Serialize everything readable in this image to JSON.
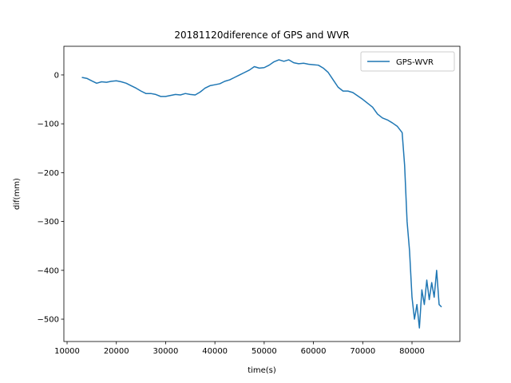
{
  "chart_data": {
    "type": "line",
    "title": "20181120diference of GPS and WVR",
    "x_label": "time(s)",
    "y_label": "dif(mm)",
    "legend_position": "upper right",
    "xlim": [
      9350,
      89720
    ],
    "ylim": [
      -545.7,
      58.7
    ],
    "xticks": [
      10000,
      20000,
      30000,
      40000,
      50000,
      60000,
      70000,
      80000
    ],
    "yticks": [
      0,
      {
        "value": -100,
        "label": "−100"
      },
      {
        "value": -200,
        "label": "−200"
      },
      {
        "value": -300,
        "label": "−300"
      },
      {
        "value": -400,
        "label": "−400"
      },
      {
        "value": -500,
        "label": "−500"
      }
    ],
    "x": [
      13000,
      14000,
      15000,
      16000,
      17000,
      18000,
      19000,
      20000,
      21000,
      22000,
      23000,
      24000,
      25000,
      26000,
      27000,
      28000,
      29000,
      30000,
      31000,
      32000,
      33000,
      34000,
      35000,
      36000,
      37000,
      38000,
      39000,
      40000,
      41000,
      42000,
      43000,
      44000,
      45000,
      46000,
      47000,
      48000,
      49000,
      50000,
      51000,
      52000,
      53000,
      54000,
      55000,
      56000,
      57000,
      58000,
      59000,
      60000,
      61000,
      62000,
      63000,
      64000,
      65000,
      66000,
      67000,
      68000,
      69000,
      70000,
      71000,
      72000,
      73000,
      74000,
      75000,
      76000,
      77000,
      78000,
      78500,
      79000,
      79500,
      80000,
      80500,
      81000,
      81500,
      82000,
      82500,
      83000,
      83500,
      84000,
      84500,
      85000,
      85500,
      86000
    ],
    "series": [
      {
        "name": "GPS-WVR",
        "color": "#1f77b4",
        "values": [
          -5,
          -7,
          -12,
          -17,
          -14,
          -15,
          -13,
          -12,
          -14,
          -17,
          -22,
          -27,
          -33,
          -38,
          -38,
          -40,
          -44,
          -44,
          -42,
          -40,
          -41,
          -38,
          -40,
          -41,
          -35,
          -27,
          -22,
          -20,
          -18,
          -13,
          -10,
          -5,
          0,
          5,
          10,
          17,
          14,
          15,
          20,
          27,
          31,
          28,
          31,
          25,
          23,
          24,
          22,
          21,
          20,
          14,
          5,
          -10,
          -25,
          -33,
          -33,
          -36,
          -43,
          -50,
          -58,
          -66,
          -80,
          -88,
          -92,
          -98,
          -105,
          -118,
          -185,
          -300,
          -360,
          -455,
          -500,
          -470,
          -518,
          -440,
          -470,
          -420,
          -460,
          -425,
          -455,
          -400,
          -470,
          -475
        ]
      }
    ]
  }
}
